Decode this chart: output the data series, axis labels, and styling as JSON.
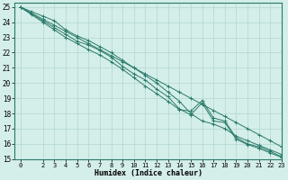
{
  "xlabel": "Humidex (Indice chaleur)",
  "background_color": "#d4eeea",
  "grid_color": "#b0d8d0",
  "line_color": "#2a7a6a",
  "xlim": [
    -0.5,
    23
  ],
  "ylim": [
    15,
    25.3
  ],
  "xticks": [
    0,
    2,
    3,
    4,
    5,
    6,
    7,
    8,
    9,
    10,
    11,
    12,
    13,
    14,
    15,
    16,
    17,
    18,
    19,
    20,
    21,
    22,
    23
  ],
  "yticks": [
    15,
    16,
    17,
    18,
    19,
    20,
    21,
    22,
    23,
    24,
    25
  ],
  "lines": [
    {
      "x": [
        0,
        1,
        2,
        3,
        4,
        5,
        6,
        7,
        8,
        9,
        10,
        11,
        12,
        13,
        14,
        15,
        16,
        17,
        18,
        19,
        20,
        21,
        22,
        23
      ],
      "y": [
        25.0,
        24.6,
        24.2,
        23.8,
        23.4,
        23.0,
        22.6,
        22.2,
        21.8,
        21.4,
        21.0,
        20.6,
        20.2,
        19.8,
        19.4,
        19.0,
        18.6,
        18.2,
        17.8,
        17.4,
        17.0,
        16.6,
        16.2,
        15.8
      ]
    },
    {
      "x": [
        0,
        1,
        2,
        3,
        4,
        5,
        6,
        7,
        8,
        9,
        10,
        11,
        12,
        13,
        14,
        15,
        16,
        17,
        18,
        19,
        20,
        21,
        22,
        23
      ],
      "y": [
        25.0,
        24.55,
        24.1,
        23.65,
        23.2,
        22.75,
        22.5,
        22.15,
        21.7,
        21.1,
        20.6,
        20.2,
        19.6,
        19.1,
        18.3,
        17.9,
        18.7,
        17.5,
        17.4,
        16.3,
        15.95,
        15.7,
        15.4,
        15.1
      ]
    },
    {
      "x": [
        0,
        1,
        2,
        3,
        4,
        5,
        6,
        7,
        8,
        9,
        10,
        11,
        12,
        13,
        14,
        15,
        16,
        17,
        18,
        19,
        20,
        21,
        22,
        23
      ],
      "y": [
        25.0,
        24.7,
        24.4,
        24.1,
        23.5,
        23.1,
        22.8,
        22.4,
        22.0,
        21.5,
        21.0,
        20.5,
        20.0,
        19.4,
        18.8,
        18.0,
        17.5,
        17.3,
        17.0,
        16.5,
        16.2,
        15.9,
        15.6,
        15.3
      ]
    },
    {
      "x": [
        0,
        1,
        2,
        3,
        4,
        5,
        6,
        7,
        8,
        9,
        10,
        11,
        12,
        13,
        14,
        15,
        16,
        17,
        18,
        19,
        20,
        21,
        22,
        23
      ],
      "y": [
        25.0,
        24.5,
        24.0,
        23.5,
        23.0,
        22.6,
        22.2,
        21.85,
        21.4,
        20.9,
        20.35,
        19.8,
        19.3,
        18.8,
        18.25,
        18.15,
        18.85,
        17.7,
        17.5,
        16.4,
        16.0,
        15.8,
        15.5,
        15.15
      ]
    }
  ]
}
